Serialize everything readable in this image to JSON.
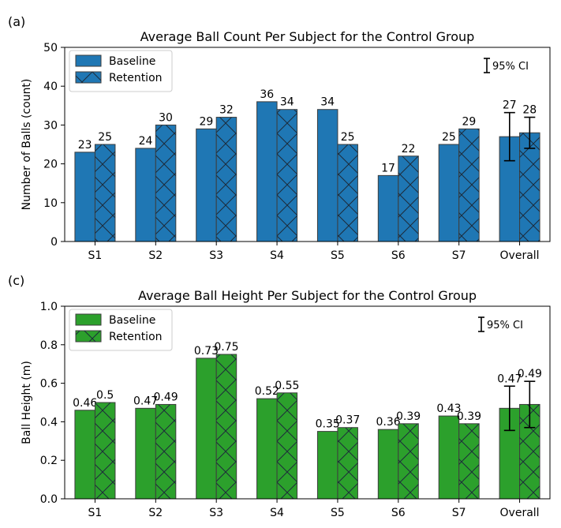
{
  "chart_data": [
    {
      "panel_label": "(a)",
      "type": "bar",
      "title": "Average Ball Count Per Subject for the Control Group",
      "xlabel": "",
      "ylabel": "Number of Balls (count)",
      "ylim": [
        0,
        50
      ],
      "yticks": [
        "0",
        "10",
        "20",
        "30",
        "40",
        "50"
      ],
      "categories": [
        "S1",
        "S2",
        "S3",
        "S4",
        "S5",
        "S6",
        "S7",
        "Overall"
      ],
      "series": [
        {
          "name": "Baseline",
          "values": [
            23,
            24,
            29,
            36,
            34,
            17,
            25,
            27
          ],
          "labels": [
            "23",
            "24",
            "29",
            "36",
            "34",
            "17",
            "25",
            "27"
          ],
          "color": "#1f77b4",
          "hatch": "none"
        },
        {
          "name": "Retention",
          "values": [
            25,
            30,
            32,
            34,
            25,
            22,
            29,
            28
          ],
          "labels": [
            "25",
            "30",
            "32",
            "34",
            "25",
            "22",
            "29",
            "28"
          ],
          "color": "#1f77b4",
          "hatch": "cross"
        }
      ],
      "error_bars": {
        "category": "Overall",
        "Baseline": [
          20.8,
          33.2
        ],
        "Retention": [
          24,
          32
        ]
      },
      "ci_label": "95% CI",
      "legend": "top-left",
      "grid": false
    },
    {
      "panel_label": "(c)",
      "type": "bar",
      "title": "Average Ball Height Per Subject for the Control Group",
      "xlabel": "",
      "ylabel": "Ball Height (m)",
      "ylim": [
        0,
        1.0
      ],
      "yticks": [
        "0.0",
        "0.2",
        "0.4",
        "0.6",
        "0.8",
        "1.0"
      ],
      "categories": [
        "S1",
        "S2",
        "S3",
        "S4",
        "S5",
        "S6",
        "S7",
        "Overall"
      ],
      "series": [
        {
          "name": "Baseline",
          "values": [
            0.46,
            0.47,
            0.73,
            0.52,
            0.35,
            0.36,
            0.43,
            0.47
          ],
          "labels": [
            "0.46",
            "0.47",
            "0.73",
            "0.52",
            "0.35",
            "0.36",
            "0.43",
            "0.47"
          ],
          "color": "#2ca02c",
          "hatch": "none"
        },
        {
          "name": "Retention",
          "values": [
            0.5,
            0.49,
            0.75,
            0.55,
            0.37,
            0.39,
            0.39,
            0.49
          ],
          "labels": [
            "0.5",
            "0.49",
            "0.75",
            "0.55",
            "0.37",
            "0.39",
            "0.39",
            "0.49"
          ],
          "color": "#2ca02c",
          "hatch": "cross"
        }
      ],
      "error_bars": {
        "category": "Overall",
        "Baseline": [
          0.355,
          0.585
        ],
        "Retention": [
          0.37,
          0.61
        ]
      },
      "ci_label": "95% CI",
      "legend": "top-left",
      "grid": false
    }
  ]
}
